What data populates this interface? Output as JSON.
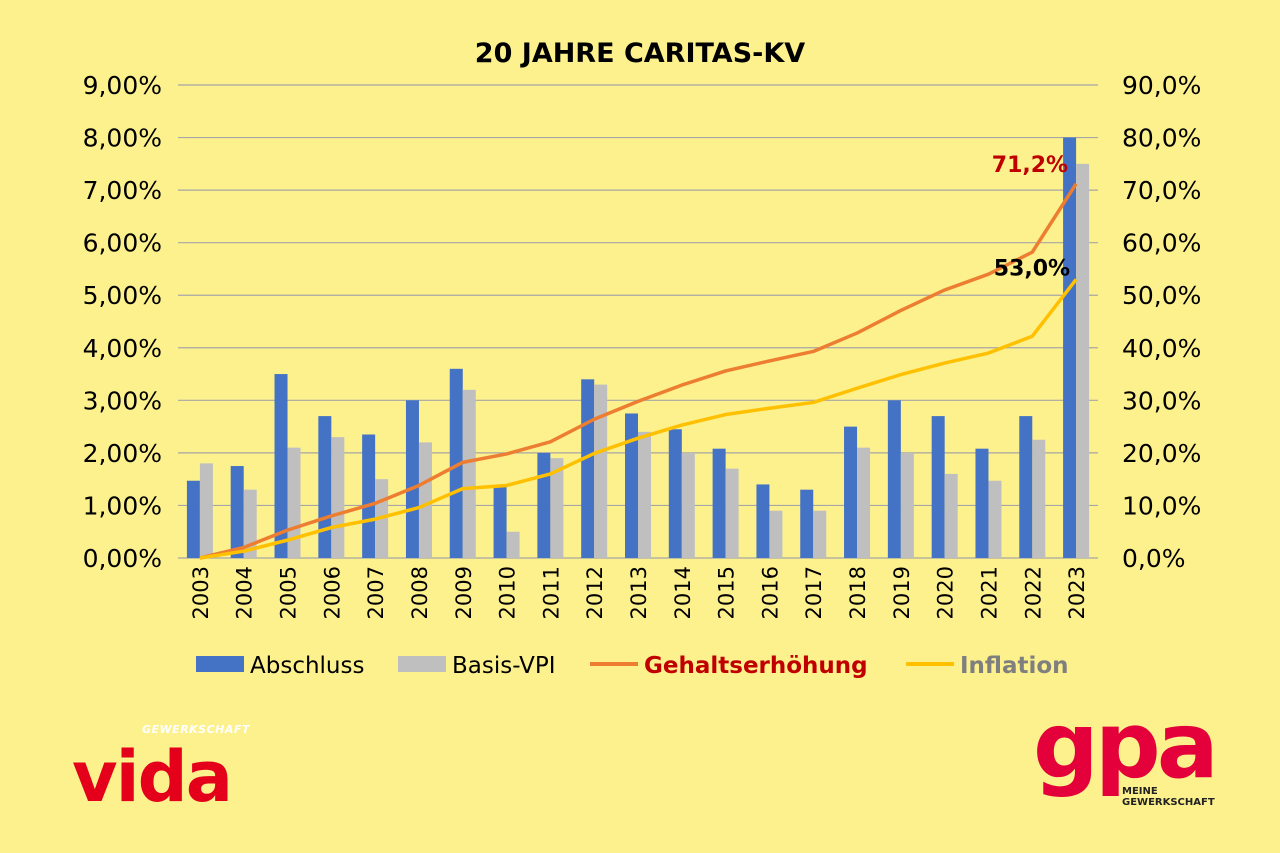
{
  "chart_data": {
    "type": "bar",
    "title": "20 JAHRE CARITAS-KV",
    "categories": [
      "2003",
      "2004",
      "2005",
      "2006",
      "2007",
      "2008",
      "2009",
      "2010",
      "2011",
      "2012",
      "2013",
      "2014",
      "2015",
      "2016",
      "2017",
      "2018",
      "2019",
      "2020",
      "2021",
      "2022",
      "2023"
    ],
    "y_left": {
      "ylim": [
        0,
        9
      ],
      "ticks": [
        "0,00%",
        "1,00%",
        "2,00%",
        "3,00%",
        "4,00%",
        "5,00%",
        "6,00%",
        "7,00%",
        "8,00%",
        "9,00%"
      ]
    },
    "y_right": {
      "ylim": [
        0,
        90
      ],
      "ticks": [
        "0,0%",
        "10,0%",
        "20,0%",
        "30,0%",
        "40,0%",
        "50,0%",
        "60,0%",
        "70,0%",
        "80,0%",
        "90,0%"
      ]
    },
    "grid": true,
    "legend_position": "bottom",
    "series": [
      {
        "name": "Abschluss",
        "type": "bar",
        "axis": "left",
        "color": "#4472c4",
        "values": [
          1.47,
          1.75,
          3.5,
          2.7,
          2.35,
          3.0,
          3.6,
          1.35,
          2.0,
          3.4,
          2.75,
          2.45,
          2.08,
          1.4,
          1.3,
          2.5,
          3.0,
          2.7,
          2.08,
          2.7,
          8.0
        ]
      },
      {
        "name": "Basis-VPI",
        "type": "bar",
        "axis": "left",
        "color": "#bfbfbf",
        "values": [
          1.8,
          1.3,
          2.1,
          2.3,
          1.5,
          2.2,
          3.2,
          0.5,
          1.9,
          3.3,
          2.4,
          2.0,
          1.7,
          0.9,
          0.9,
          2.1,
          2.0,
          1.6,
          1.47,
          2.25,
          7.5
        ]
      },
      {
        "name": "Gehaltserhöhung",
        "type": "line",
        "axis": "right",
        "color": "#ed7d31",
        "legend_color": "#c00000",
        "values": [
          0,
          2.0,
          5.3,
          8.0,
          10.4,
          13.8,
          18.2,
          19.8,
          22.1,
          26.4,
          29.8,
          32.9,
          35.6,
          37.5,
          39.3,
          42.8,
          47.1,
          51.0,
          54.0,
          58.2,
          71.2
        ]
      },
      {
        "name": "Inflation",
        "type": "line",
        "axis": "right",
        "color": "#ffc000",
        "legend_color": "#7f7f7f",
        "values": [
          0,
          1.3,
          3.4,
          5.8,
          7.4,
          9.6,
          13.2,
          13.8,
          16.0,
          19.9,
          22.8,
          25.3,
          27.3,
          28.5,
          29.6,
          32.3,
          34.9,
          37.1,
          39.0,
          42.2,
          53.0
        ]
      }
    ],
    "annotations": [
      {
        "text": "71,2%",
        "series": "Gehaltserhöhung",
        "category": "2023",
        "color": "#c00000"
      },
      {
        "text": "53,0%",
        "series": "Inflation",
        "category": "2023",
        "color": "#000000"
      }
    ]
  },
  "logos": {
    "vida": {
      "sub": "GEWERKSCHAFT",
      "word": "vida"
    },
    "gpa": {
      "word": "gpa",
      "sub_line1": "MEINE",
      "sub_line2": "GEWERKSCHAFT"
    }
  },
  "colors": {
    "background": "#fdf18e",
    "grid": "#a6a6a6"
  }
}
